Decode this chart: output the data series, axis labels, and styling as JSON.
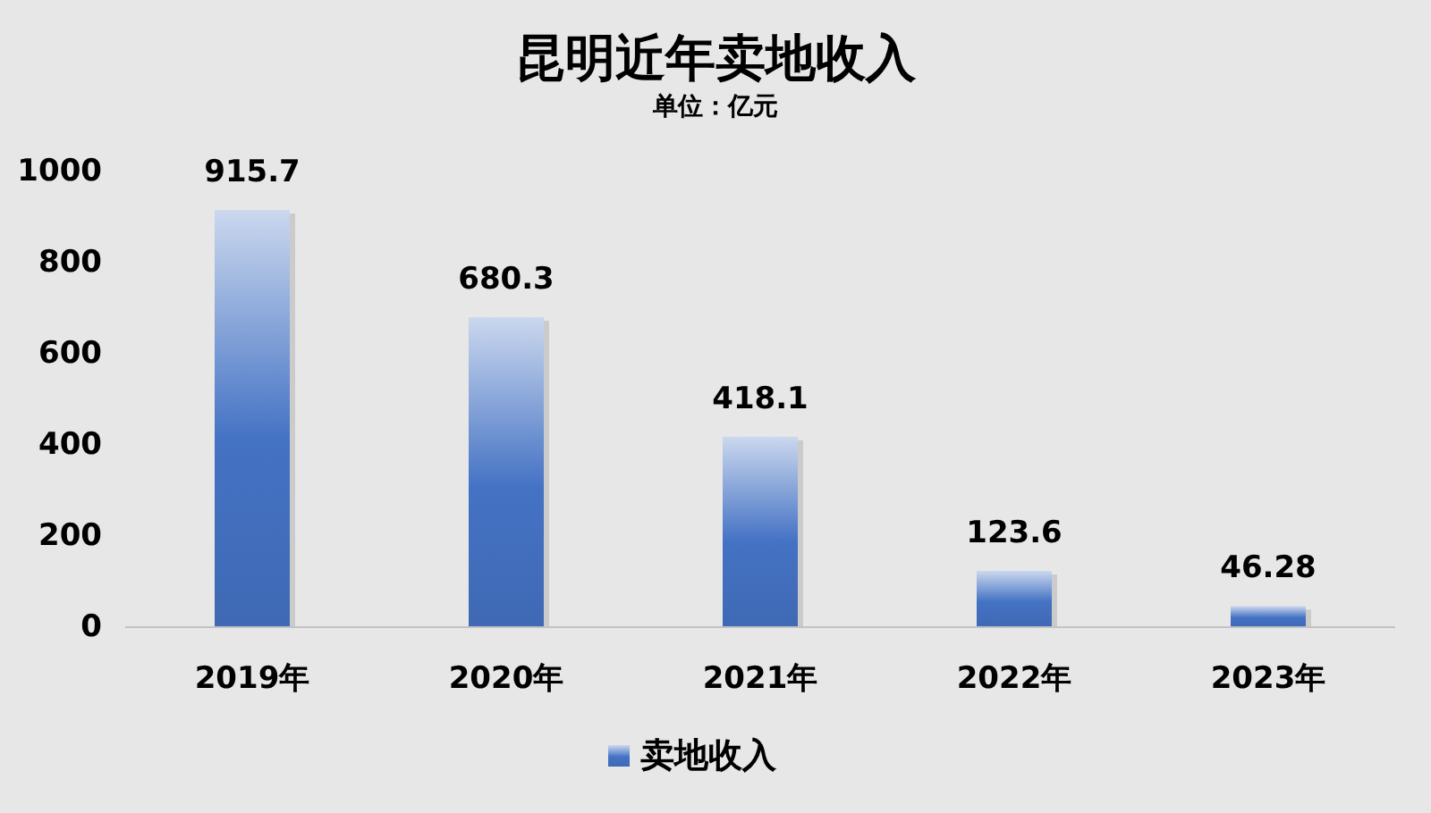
{
  "chart_data": {
    "type": "bar",
    "title": "昆明近年卖地收入",
    "subtitle": "单位：亿元",
    "categories": [
      "2019年",
      "2020年",
      "2021年",
      "2022年",
      "2023年"
    ],
    "series": [
      {
        "name": "卖地收入",
        "color": "#4472c4",
        "values": [
          915.7,
          680.3,
          418.1,
          123.6,
          46.28
        ]
      }
    ],
    "ylim": [
      0,
      1000
    ],
    "yticks": [
      0,
      200,
      400,
      600,
      800,
      1000
    ],
    "data_labels": true,
    "legend": "bottom"
  }
}
